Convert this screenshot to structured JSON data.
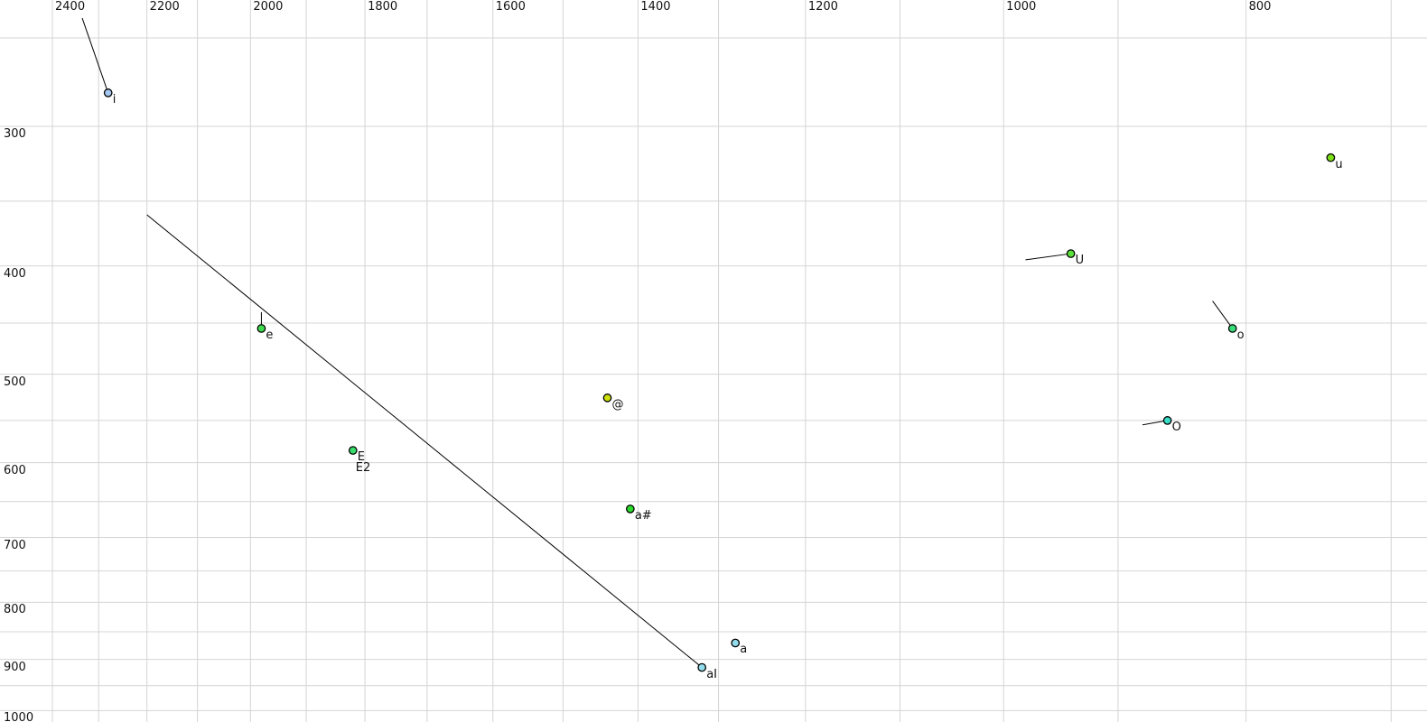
{
  "chart_data": {
    "type": "scatter",
    "title": "",
    "x_axis": {
      "position": "top",
      "scale": "log",
      "direction": "reversed",
      "tick_labels": [
        "2400",
        "2200",
        "2000",
        "1800",
        "1600",
        "1400",
        "1200",
        "1000",
        "800"
      ],
      "grid_min": 700,
      "grid_max": 2400,
      "grid_step": 100
    },
    "y_axis": {
      "position": "left",
      "scale": "log",
      "direction": "down",
      "tick_labels": [
        "300",
        "400",
        "500",
        "600",
        "700",
        "800",
        "900",
        "1000"
      ],
      "grid_min": 250,
      "grid_max": 1000,
      "grid_step": 50
    },
    "points": [
      {
        "label": "i",
        "f2": 2280,
        "f1": 280,
        "color": "#a6c8f0",
        "tail": {
          "f2": 2335,
          "f1": 240
        }
      },
      {
        "label": "u",
        "f2": 740,
        "f1": 320,
        "color": "#7ce018",
        "tail": null
      },
      {
        "label": "U",
        "f2": 940,
        "f1": 390,
        "color": "#5ce03a",
        "tail": {
          "f2": 980,
          "f1": 395
        }
      },
      {
        "label": "o",
        "f2": 810,
        "f1": 455,
        "color": "#38dc78",
        "tail": {
          "f2": 825,
          "f1": 430
        }
      },
      {
        "label": "e",
        "f2": 1980,
        "f1": 455,
        "color": "#40dc50",
        "tail": {
          "f2": 1980,
          "f1": 440
        }
      },
      {
        "label": "@",
        "f2": 1440,
        "f1": 525,
        "color": "#cde00a",
        "tail": null
      },
      {
        "label": "O",
        "f2": 860,
        "f1": 550,
        "color": "#38dcc8",
        "tail": {
          "f2": 880,
          "f1": 555
        }
      },
      {
        "label": "E",
        "f2": 1820,
        "f1": 585,
        "color": "#38dc6a",
        "label2": "E2",
        "tail": null
      },
      {
        "label": "a#",
        "f2": 1410,
        "f1": 660,
        "color": "#2cdc2c",
        "tail": null
      },
      {
        "label": "a",
        "f2": 1280,
        "f1": 870,
        "color": "#92dcec",
        "tail": null
      },
      {
        "label": "aI",
        "f2": 1320,
        "f1": 915,
        "color": "#92dcec",
        "tail": {
          "f2": 2200,
          "f1": 360
        }
      }
    ],
    "colors": {
      "background": "#ffffff",
      "grid": "#d4d4d4",
      "line": "#000000",
      "marker_outline": "#000000",
      "text": "#111111"
    }
  }
}
